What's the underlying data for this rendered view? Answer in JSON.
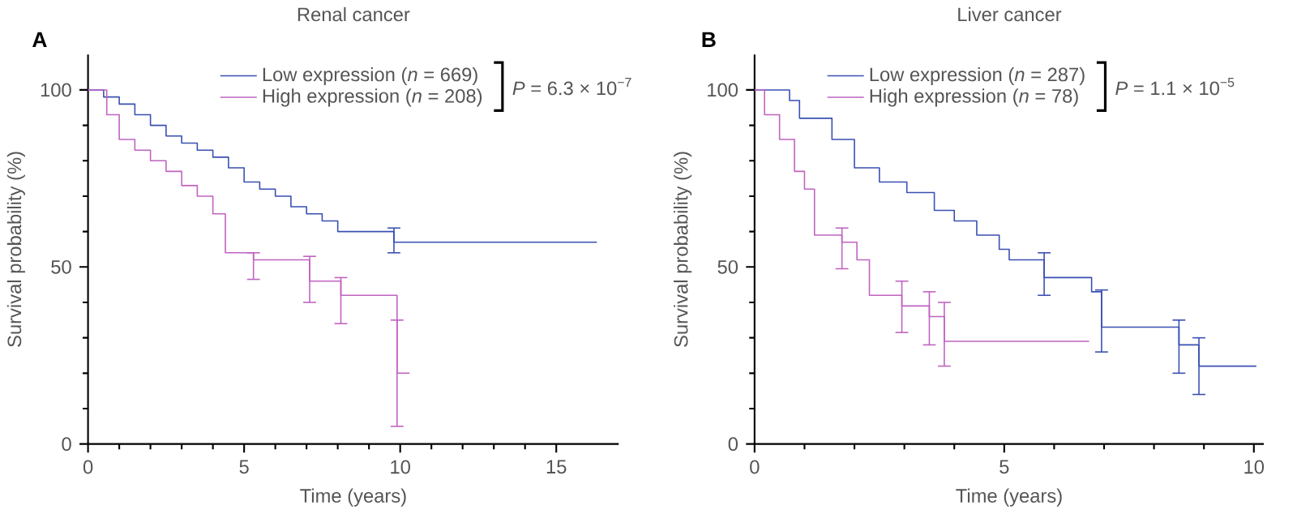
{
  "chart_data": [
    {
      "type": "step",
      "title": "Renal cancer",
      "xlabel": "Time (years)",
      "ylabel": "Survival probability (%)",
      "xlim": [
        0,
        17
      ],
      "ylim": [
        0,
        110
      ],
      "xticks": [
        0,
        5,
        10,
        15
      ],
      "yticks": [
        0,
        50,
        100
      ],
      "legend": "top",
      "grid": false,
      "annotations": [
        "**A**",
        "*P* = 6.3 × 10$^{−7}$"
      ],
      "series": [
        {
          "name": "Low expression (*n* = 669)",
          "color": "#3a4fb2",
          "x": [
            0,
            0.5,
            1,
            1.5,
            2,
            2.5,
            3,
            3.5,
            4,
            4.5,
            5,
            5.5,
            6,
            6.5,
            7,
            7.5,
            8,
            9.8,
            16.3
          ],
          "values": [
            100,
            98,
            96,
            93,
            90,
            87,
            85,
            83,
            81,
            78,
            74,
            72,
            70,
            67,
            65,
            63,
            60,
            57,
            57
          ],
          "errors": [
            null,
            null,
            null,
            null,
            null,
            null,
            null,
            null,
            null,
            null,
            null,
            null,
            null,
            null,
            null,
            null,
            null,
            [
              54,
              61
            ],
            null
          ]
        },
        {
          "name": "High expression (*n* = 208)",
          "color": "#c063c0",
          "x": [
            0,
            0.6,
            1,
            1.5,
            2,
            2.5,
            3,
            3.5,
            4,
            4.4,
            5.3,
            7.1,
            8.1,
            9.9,
            10.3
          ],
          "values": [
            100,
            93,
            86,
            83,
            80,
            77,
            73,
            70,
            65,
            54,
            52,
            46,
            42,
            20,
            20
          ],
          "errors": [
            null,
            null,
            null,
            null,
            null,
            null,
            null,
            null,
            null,
            null,
            [
              46.5,
              54
            ],
            [
              40,
              53
            ],
            [
              34,
              47
            ],
            [
              5,
              35
            ],
            null
          ]
        }
      ]
    },
    {
      "type": "step",
      "title": "Liver cancer",
      "xlabel": "Time (years)",
      "ylabel": "Survival probability (%)",
      "xlim": [
        0,
        10.2
      ],
      "ylim": [
        0,
        110
      ],
      "xticks": [
        0,
        5,
        10
      ],
      "yticks": [
        0,
        50,
        100
      ],
      "legend": "top",
      "grid": false,
      "annotations": [
        "**B**",
        "*P* = 1.1 × 10$^{−5}$"
      ],
      "series": [
        {
          "name": "Low expression (*n* = 287)",
          "color": "#3a4fb2",
          "x": [
            0,
            0.7,
            0.9,
            1.55,
            2,
            2.5,
            3.05,
            3.6,
            4,
            4.45,
            4.9,
            5.1,
            5.8,
            6.75,
            6.95,
            8.5,
            8.9,
            10.05
          ],
          "values": [
            100,
            97,
            92,
            86,
            78,
            74,
            71,
            66,
            63,
            59,
            55,
            52,
            47,
            43,
            33,
            28,
            22,
            22
          ],
          "errors": [
            null,
            null,
            null,
            null,
            null,
            null,
            null,
            null,
            null,
            null,
            null,
            null,
            [
              42,
              54
            ],
            null,
            [
              26,
              43.5
            ],
            [
              20,
              35
            ],
            [
              14,
              30
            ],
            null
          ]
        },
        {
          "name": "High expression (*n* = 78)",
          "color": "#c063c0",
          "x": [
            0,
            0.2,
            0.5,
            0.8,
            1,
            1.2,
            1.75,
            2.05,
            2.3,
            2.95,
            3.5,
            3.8,
            6.7
          ],
          "values": [
            100,
            93,
            86,
            77,
            72,
            59,
            57,
            52,
            42,
            39,
            36,
            29,
            29
          ],
          "errors": [
            null,
            null,
            null,
            null,
            null,
            null,
            [
              49.5,
              61
            ],
            null,
            null,
            [
              31.5,
              46
            ],
            [
              28,
              43
            ],
            [
              22,
              40
            ],
            null
          ]
        }
      ]
    }
  ]
}
